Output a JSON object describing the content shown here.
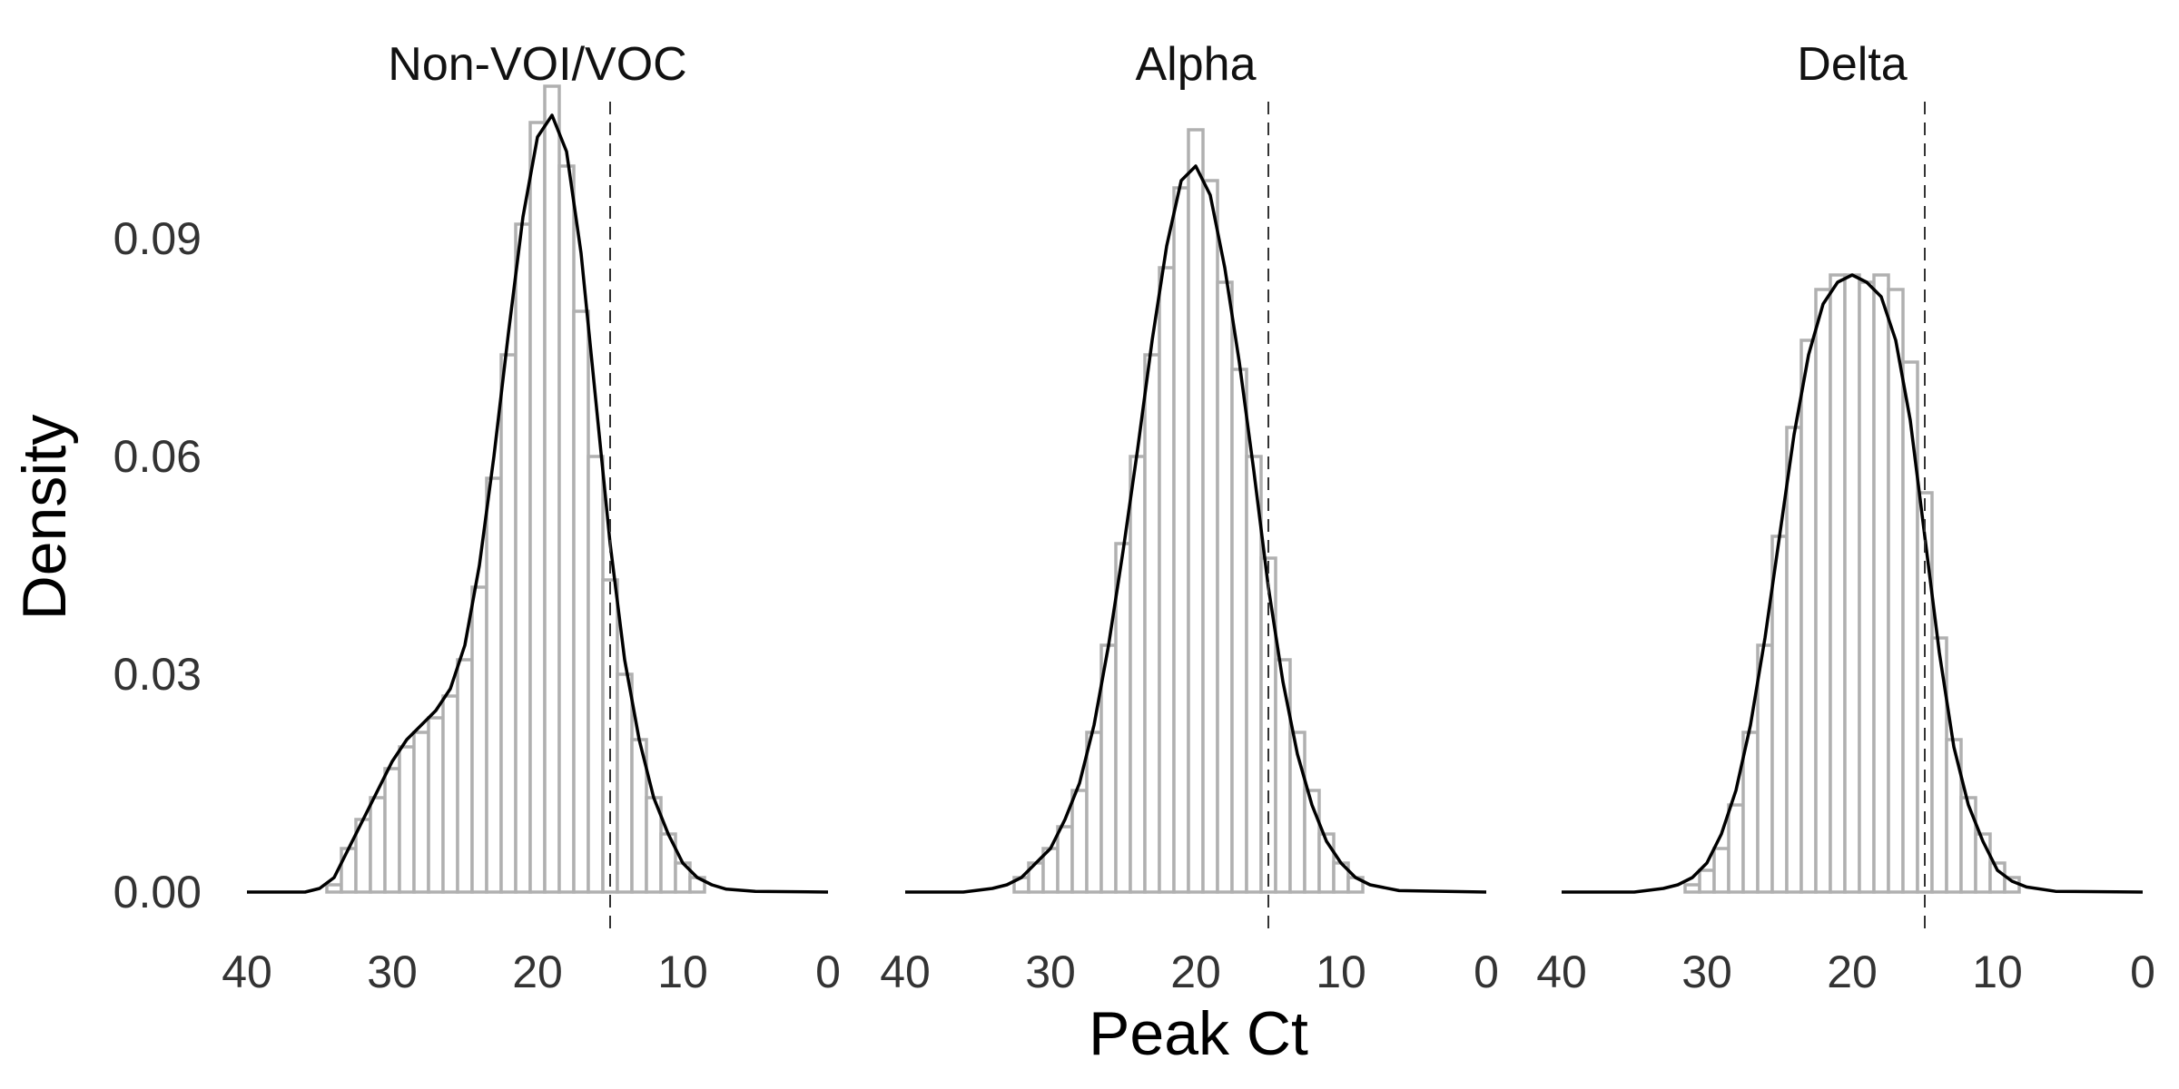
{
  "chart_data": {
    "type": "histogram_with_density",
    "xlabel": "Peak Ct",
    "ylabel": "Density",
    "x_reversed": true,
    "xlim": [
      0,
      40
    ],
    "ylim": [
      0,
      0.114
    ],
    "x_ticks": [
      40,
      30,
      20,
      10,
      0
    ],
    "x_tick_labels": [
      "40",
      "30",
      "20",
      "10",
      "0"
    ],
    "y_ticks": [
      0,
      0.03,
      0.06,
      0.09
    ],
    "y_tick_labels": [
      "0.00",
      "0.03",
      "0.06",
      "0.09"
    ],
    "threshold_ct": 15,
    "bin_width": 1,
    "bar_stroke_color": "#b0b0b0",
    "line_color": "#000000",
    "panels": [
      {
        "title": "Non-VOI/VOC",
        "histogram": [
          {
            "x": 34,
            "density": 0.001
          },
          {
            "x": 33,
            "density": 0.006
          },
          {
            "x": 32,
            "density": 0.01
          },
          {
            "x": 31,
            "density": 0.013
          },
          {
            "x": 30,
            "density": 0.017
          },
          {
            "x": 29,
            "density": 0.02
          },
          {
            "x": 28,
            "density": 0.022
          },
          {
            "x": 27,
            "density": 0.024
          },
          {
            "x": 26,
            "density": 0.027
          },
          {
            "x": 25,
            "density": 0.032
          },
          {
            "x": 24,
            "density": 0.042
          },
          {
            "x": 23,
            "density": 0.057
          },
          {
            "x": 22,
            "density": 0.074
          },
          {
            "x": 21,
            "density": 0.092
          },
          {
            "x": 20,
            "density": 0.106
          },
          {
            "x": 19,
            "density": 0.111
          },
          {
            "x": 18,
            "density": 0.1
          },
          {
            "x": 17,
            "density": 0.08
          },
          {
            "x": 16,
            "density": 0.06
          },
          {
            "x": 15,
            "density": 0.043
          },
          {
            "x": 14,
            "density": 0.03
          },
          {
            "x": 13,
            "density": 0.021
          },
          {
            "x": 12,
            "density": 0.013
          },
          {
            "x": 11,
            "density": 0.008
          },
          {
            "x": 10,
            "density": 0.004
          },
          {
            "x": 9,
            "density": 0.002
          }
        ],
        "density_curve": [
          {
            "x": 40,
            "y": 0.0
          },
          {
            "x": 36,
            "y": 0.0
          },
          {
            "x": 35,
            "y": 0.0005
          },
          {
            "x": 34,
            "y": 0.002
          },
          {
            "x": 33,
            "y": 0.006
          },
          {
            "x": 32,
            "y": 0.01
          },
          {
            "x": 31,
            "y": 0.014
          },
          {
            "x": 30,
            "y": 0.018
          },
          {
            "x": 29,
            "y": 0.021
          },
          {
            "x": 28,
            "y": 0.023
          },
          {
            "x": 27,
            "y": 0.025
          },
          {
            "x": 26,
            "y": 0.028
          },
          {
            "x": 25,
            "y": 0.034
          },
          {
            "x": 24,
            "y": 0.045
          },
          {
            "x": 23,
            "y": 0.06
          },
          {
            "x": 22,
            "y": 0.077
          },
          {
            "x": 21,
            "y": 0.093
          },
          {
            "x": 20,
            "y": 0.104
          },
          {
            "x": 19,
            "y": 0.107
          },
          {
            "x": 18,
            "y": 0.102
          },
          {
            "x": 17,
            "y": 0.088
          },
          {
            "x": 16,
            "y": 0.068
          },
          {
            "x": 15,
            "y": 0.048
          },
          {
            "x": 14,
            "y": 0.032
          },
          {
            "x": 13,
            "y": 0.021
          },
          {
            "x": 12,
            "y": 0.013
          },
          {
            "x": 11,
            "y": 0.008
          },
          {
            "x": 10,
            "y": 0.004
          },
          {
            "x": 9,
            "y": 0.002
          },
          {
            "x": 8,
            "y": 0.001
          },
          {
            "x": 7,
            "y": 0.0004
          },
          {
            "x": 5,
            "y": 0.0001
          },
          {
            "x": 0,
            "y": 0.0
          }
        ]
      },
      {
        "title": "Alpha",
        "histogram": [
          {
            "x": 32,
            "density": 0.002
          },
          {
            "x": 31,
            "density": 0.004
          },
          {
            "x": 30,
            "density": 0.006
          },
          {
            "x": 29,
            "density": 0.009
          },
          {
            "x": 28,
            "density": 0.014
          },
          {
            "x": 27,
            "density": 0.022
          },
          {
            "x": 26,
            "density": 0.034
          },
          {
            "x": 25,
            "density": 0.048
          },
          {
            "x": 24,
            "density": 0.06
          },
          {
            "x": 23,
            "density": 0.074
          },
          {
            "x": 22,
            "density": 0.086
          },
          {
            "x": 21,
            "density": 0.097
          },
          {
            "x": 20,
            "density": 0.105
          },
          {
            "x": 19,
            "density": 0.098
          },
          {
            "x": 18,
            "density": 0.084
          },
          {
            "x": 17,
            "density": 0.072
          },
          {
            "x": 16,
            "density": 0.06
          },
          {
            "x": 15,
            "density": 0.046
          },
          {
            "x": 14,
            "density": 0.032
          },
          {
            "x": 13,
            "density": 0.022
          },
          {
            "x": 12,
            "density": 0.014
          },
          {
            "x": 11,
            "density": 0.008
          },
          {
            "x": 10,
            "density": 0.004
          },
          {
            "x": 9,
            "density": 0.002
          }
        ],
        "density_curve": [
          {
            "x": 40,
            "y": 0.0
          },
          {
            "x": 36,
            "y": 0.0
          },
          {
            "x": 34,
            "y": 0.0005
          },
          {
            "x": 33,
            "y": 0.001
          },
          {
            "x": 32,
            "y": 0.002
          },
          {
            "x": 31,
            "y": 0.004
          },
          {
            "x": 30,
            "y": 0.006
          },
          {
            "x": 29,
            "y": 0.01
          },
          {
            "x": 28,
            "y": 0.015
          },
          {
            "x": 27,
            "y": 0.023
          },
          {
            "x": 26,
            "y": 0.034
          },
          {
            "x": 25,
            "y": 0.047
          },
          {
            "x": 24,
            "y": 0.061
          },
          {
            "x": 23,
            "y": 0.076
          },
          {
            "x": 22,
            "y": 0.089
          },
          {
            "x": 21,
            "y": 0.098
          },
          {
            "x": 20,
            "y": 0.1
          },
          {
            "x": 19,
            "y": 0.096
          },
          {
            "x": 18,
            "y": 0.086
          },
          {
            "x": 17,
            "y": 0.073
          },
          {
            "x": 16,
            "y": 0.058
          },
          {
            "x": 15,
            "y": 0.042
          },
          {
            "x": 14,
            "y": 0.029
          },
          {
            "x": 13,
            "y": 0.019
          },
          {
            "x": 12,
            "y": 0.012
          },
          {
            "x": 11,
            "y": 0.007
          },
          {
            "x": 10,
            "y": 0.004
          },
          {
            "x": 9,
            "y": 0.002
          },
          {
            "x": 8,
            "y": 0.001
          },
          {
            "x": 6,
            "y": 0.0002
          },
          {
            "x": 0,
            "y": 0.0
          }
        ]
      },
      {
        "title": "Delta",
        "histogram": [
          {
            "x": 31,
            "density": 0.001
          },
          {
            "x": 30,
            "density": 0.003
          },
          {
            "x": 29,
            "density": 0.006
          },
          {
            "x": 28,
            "density": 0.012
          },
          {
            "x": 27,
            "density": 0.022
          },
          {
            "x": 26,
            "density": 0.034
          },
          {
            "x": 25,
            "density": 0.049
          },
          {
            "x": 24,
            "density": 0.064
          },
          {
            "x": 23,
            "density": 0.076
          },
          {
            "x": 22,
            "density": 0.083
          },
          {
            "x": 21,
            "density": 0.085
          },
          {
            "x": 20,
            "density": 0.085
          },
          {
            "x": 19,
            "density": 0.084
          },
          {
            "x": 18,
            "density": 0.085
          },
          {
            "x": 17,
            "density": 0.083
          },
          {
            "x": 16,
            "density": 0.073
          },
          {
            "x": 15,
            "density": 0.055
          },
          {
            "x": 14,
            "density": 0.035
          },
          {
            "x": 13,
            "density": 0.021
          },
          {
            "x": 12,
            "density": 0.013
          },
          {
            "x": 11,
            "density": 0.008
          },
          {
            "x": 10,
            "density": 0.004
          },
          {
            "x": 9,
            "density": 0.002
          }
        ],
        "density_curve": [
          {
            "x": 40,
            "y": 0.0
          },
          {
            "x": 35,
            "y": 0.0
          },
          {
            "x": 33,
            "y": 0.0005
          },
          {
            "x": 32,
            "y": 0.001
          },
          {
            "x": 31,
            "y": 0.002
          },
          {
            "x": 30,
            "y": 0.004
          },
          {
            "x": 29,
            "y": 0.008
          },
          {
            "x": 28,
            "y": 0.014
          },
          {
            "x": 27,
            "y": 0.023
          },
          {
            "x": 26,
            "y": 0.035
          },
          {
            "x": 25,
            "y": 0.049
          },
          {
            "x": 24,
            "y": 0.063
          },
          {
            "x": 23,
            "y": 0.074
          },
          {
            "x": 22,
            "y": 0.081
          },
          {
            "x": 21,
            "y": 0.084
          },
          {
            "x": 20,
            "y": 0.085
          },
          {
            "x": 19,
            "y": 0.084
          },
          {
            "x": 18,
            "y": 0.082
          },
          {
            "x": 17,
            "y": 0.076
          },
          {
            "x": 16,
            "y": 0.065
          },
          {
            "x": 15,
            "y": 0.049
          },
          {
            "x": 14,
            "y": 0.033
          },
          {
            "x": 13,
            "y": 0.02
          },
          {
            "x": 12,
            "y": 0.012
          },
          {
            "x": 11,
            "y": 0.007
          },
          {
            "x": 10,
            "y": 0.003
          },
          {
            "x": 9,
            "y": 0.0015
          },
          {
            "x": 8,
            "y": 0.0007
          },
          {
            "x": 6,
            "y": 0.0001
          },
          {
            "x": 0,
            "y": 0.0
          }
        ]
      }
    ]
  }
}
